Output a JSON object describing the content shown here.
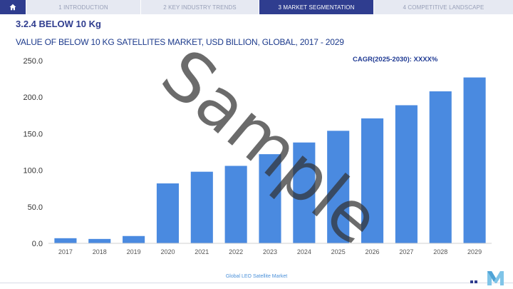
{
  "nav": {
    "tabs": [
      {
        "label": "1 INTRODUCTION",
        "active": false
      },
      {
        "label": "2 KEY INDUSTRY TRENDS",
        "active": false
      },
      {
        "label": "3 MARKET SEGMENTATION",
        "active": true
      },
      {
        "label": "4 COMPETITIVE LANDSCAPE",
        "active": false
      }
    ]
  },
  "section_title": "3.2.4 BELOW 10 Kg",
  "cagr_note": "CAGR(2025-2030): XXXX%",
  "watermark": "Sample",
  "footer": {
    "text": "Global LEO Satellite Market"
  },
  "colors": {
    "bar": "#4a8ae0",
    "nav_active": "#2f3d8f",
    "nav_inactive": "#e6e9f2",
    "title": "#1c3a8c"
  },
  "icons": {
    "home": "home-icon",
    "logo": "mordor-logo-icon"
  },
  "chart_data": {
    "type": "bar",
    "title": "VALUE OF BELOW 10 KG SATELLITES MARKET, USD BILLION, GLOBAL, 2017 - 2029",
    "categories": [
      "2017",
      "2018",
      "2019",
      "2020",
      "2021",
      "2022",
      "2023",
      "2024",
      "2025",
      "2026",
      "2027",
      "2028",
      "2029"
    ],
    "values": [
      7,
      6,
      10,
      82,
      98,
      106,
      122,
      138,
      154,
      171,
      189,
      208,
      227
    ],
    "ylim": [
      0,
      250
    ],
    "yticks": [
      0,
      50,
      100,
      150,
      200,
      250
    ],
    "ytick_labels": [
      "0.0",
      "50.0",
      "100.0",
      "150.0",
      "200.0",
      "250.0"
    ],
    "grid": false,
    "legend": "none"
  }
}
